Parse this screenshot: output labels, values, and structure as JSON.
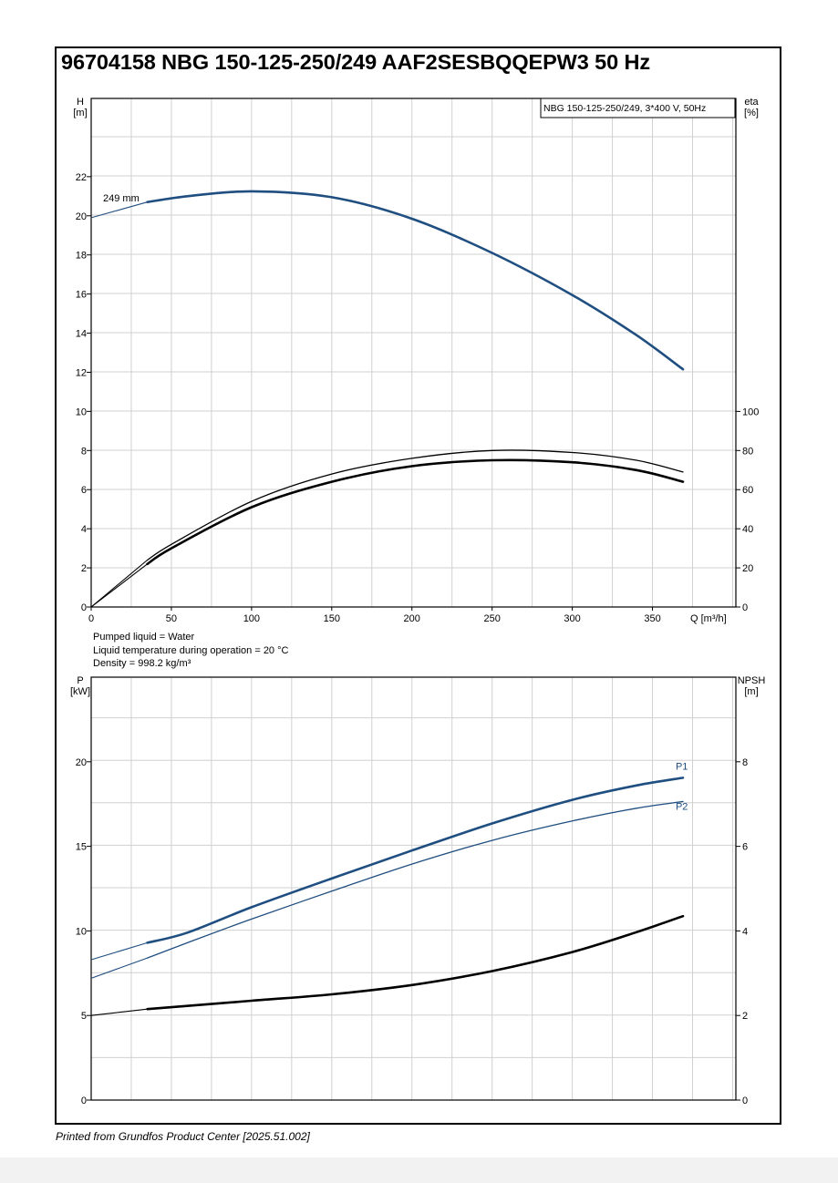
{
  "title": "96704158 NBG 150-125-250/249 AAF2SESBQQEPW3 50 Hz",
  "footer": "Printed from Grundfos Product Center [2025.51.002]",
  "liquid_info": {
    "line1": "Pumped liquid = Water",
    "line2": "Liquid temperature during operation = 20 °C",
    "line3": "Density = 998.2 kg/m³"
  },
  "colors": {
    "blue": "#1f4e80",
    "black": "#000000",
    "grid": "#d0d0d0"
  },
  "chart_data": [
    {
      "type": "line",
      "legend_box": "NBG 150-125-250/249, 3*400 V, 50Hz",
      "legend_placement": "top-right",
      "grid": true,
      "xlabel": "Q [m³/h]",
      "xlim": [
        0,
        402
      ],
      "xticks": [
        0,
        50,
        100,
        150,
        200,
        250,
        300,
        350
      ],
      "y_left": {
        "label_top": "H",
        "label_unit": "[m]",
        "ylim": [
          0,
          26
        ],
        "ticks": [
          0,
          2,
          4,
          6,
          8,
          10,
          12,
          14,
          16,
          18,
          20,
          22
        ]
      },
      "y_right": {
        "label_top": "eta",
        "label_unit": "[%]",
        "ylim": [
          0,
          260
        ],
        "ticks": [
          0,
          20,
          40,
          60,
          80,
          100
        ]
      },
      "series": [
        {
          "name": "249 mm",
          "axis": "left",
          "color": "#1f4e80",
          "x": [
            0,
            35,
            60,
            100,
            150,
            200,
            250,
            300,
            340,
            369
          ],
          "y": [
            19.9,
            20.7,
            21.0,
            21.25,
            20.95,
            19.85,
            18.1,
            15.95,
            13.9,
            12.15
          ]
        },
        {
          "axis": "right",
          "color": "#000000",
          "x": [
            0,
            35,
            50,
            100,
            150,
            200,
            250,
            300,
            340,
            369
          ],
          "y": [
            0,
            24,
            32,
            54,
            68,
            76,
            80,
            79,
            75,
            69
          ]
        },
        {
          "axis": "right",
          "color": "#000000",
          "x": [
            0,
            35,
            50,
            100,
            150,
            200,
            250,
            300,
            340,
            369
          ],
          "y": [
            0,
            22,
            30,
            51,
            64,
            72,
            75,
            74,
            70,
            64
          ]
        }
      ]
    },
    {
      "type": "line",
      "grid": true,
      "xlim": [
        0,
        402
      ],
      "y_left": {
        "label_top": "P",
        "label_unit": "[kW]",
        "ylim": [
          0,
          25
        ],
        "ticks": [
          0,
          5,
          10,
          15,
          20
        ]
      },
      "y_right": {
        "label_top": "NPSH",
        "label_unit": "[m]",
        "ylim": [
          0,
          10
        ],
        "ticks": [
          0,
          2,
          4,
          6,
          8
        ]
      },
      "series": [
        {
          "name": "P1",
          "axis": "left",
          "color": "#1f4e80",
          "x": [
            0,
            35,
            60,
            100,
            150,
            200,
            250,
            300,
            340,
            369
          ],
          "y": [
            8.3,
            9.3,
            9.9,
            11.4,
            13.1,
            14.75,
            16.35,
            17.75,
            18.6,
            19.05
          ]
        },
        {
          "name": "P2",
          "axis": "left",
          "color": "#1f4e80",
          "x": [
            0,
            35,
            60,
            100,
            150,
            200,
            250,
            300,
            340,
            369
          ],
          "y": [
            7.2,
            8.4,
            9.3,
            10.7,
            12.35,
            13.95,
            15.35,
            16.5,
            17.25,
            17.65
          ]
        },
        {
          "axis": "right",
          "color": "#000000",
          "x": [
            0,
            35,
            100,
            150,
            200,
            250,
            300,
            340,
            369
          ],
          "y": [
            2.0,
            2.15,
            2.35,
            2.5,
            2.72,
            3.05,
            3.5,
            3.97,
            4.35
          ]
        }
      ]
    }
  ]
}
